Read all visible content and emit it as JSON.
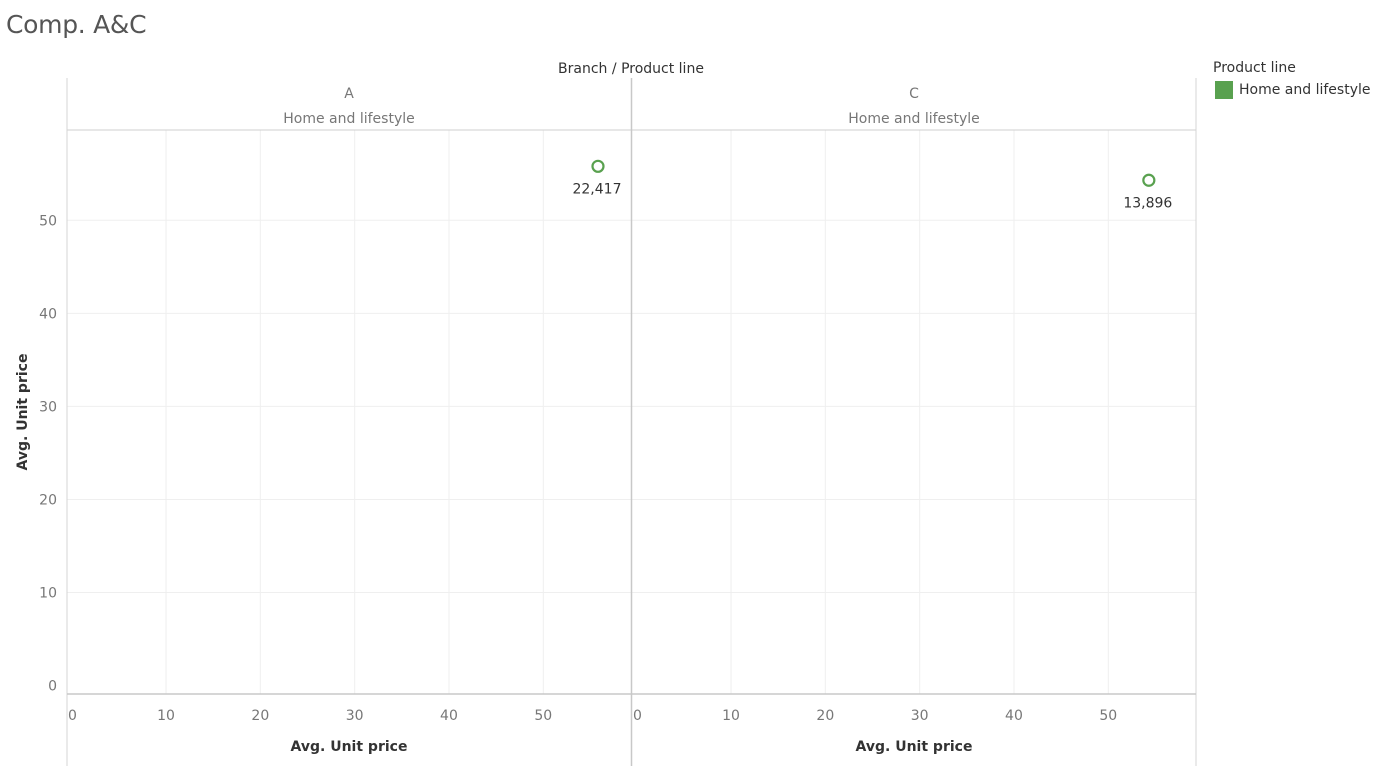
{
  "page_title": "Comp. A&C",
  "column_header": {
    "text": "Branch",
    "separator": "/",
    "sub": "Product line"
  },
  "legend": {
    "title": "Product line",
    "items": [
      {
        "label": "Home and lifestyle",
        "color": "#59a14f"
      }
    ]
  },
  "chart_data": {
    "type": "scatter",
    "panels": [
      {
        "branch": "A",
        "product_line": "Home and lifestyle",
        "points": [
          {
            "x": 55.8,
            "y": 55.8,
            "label": "22,417"
          }
        ]
      },
      {
        "branch": "C",
        "product_line": "Home and lifestyle",
        "points": [
          {
            "x": 54.3,
            "y": 54.3,
            "label": "13,896"
          }
        ]
      }
    ],
    "xlabel": "Avg. Unit price",
    "ylabel": "Avg. Unit price",
    "xlim": [
      -0.5,
      59.3
    ],
    "ylim": [
      -0.9,
      59.7
    ],
    "xticks": [
      0,
      10,
      20,
      30,
      40,
      50
    ],
    "yticks": [
      0,
      10,
      20,
      30,
      40,
      50
    ],
    "grid": true,
    "legend_position": "top-right",
    "mark_color": "#59a14f",
    "mark_shape": "circle-open"
  }
}
